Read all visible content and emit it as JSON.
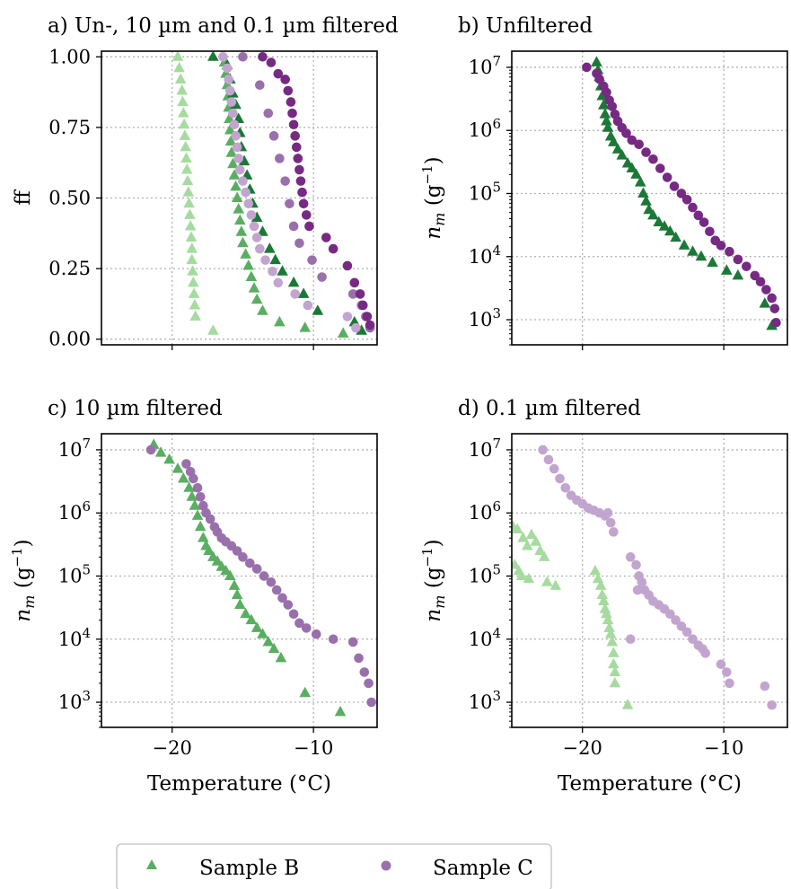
{
  "colors": {
    "B_unfilt": "#1b7837",
    "B_10um": "#5aae61",
    "B_01um": "#a6dba0",
    "C_unfilt": "#762a83",
    "C_10um": "#9970ab",
    "C_01um": "#c2a5cf"
  },
  "legend": {
    "entries": [
      "Sample B",
      "Sample C"
    ]
  },
  "xaxis": {
    "label": "Temperature (°C)",
    "ticks": [
      -20,
      -10
    ],
    "tick_labels": [
      "−20",
      "−10"
    ],
    "range": [
      -25,
      -5.5
    ]
  },
  "chart_data": [
    {
      "panel": "a",
      "type": "scatter",
      "title": "a) Un-, 10 µm and 0.1 µm filtered",
      "ylabel": "ff",
      "xlim": [
        -25,
        -5.5
      ],
      "ylim": [
        -0.02,
        1.02
      ],
      "yscale": "linear",
      "yticks": [
        0.0,
        0.25,
        0.5,
        0.75,
        1.0
      ],
      "ytick_labels": [
        "0.00",
        "0.25",
        "0.50",
        "0.75",
        "1.00"
      ],
      "grid": true,
      "series": [
        {
          "sample": "B",
          "filter": "0.1 µm",
          "marker": "triangle",
          "color_key": "B_01um",
          "x": [
            -19.6,
            -19.5,
            -19.4,
            -19.3,
            -19.25,
            -19.2,
            -19.15,
            -19.1,
            -19.05,
            -19.0,
            -18.95,
            -18.9,
            -18.85,
            -18.8,
            -18.75,
            -18.7,
            -18.65,
            -18.6,
            -18.6,
            -18.55,
            -18.5,
            -18.45,
            -18.4,
            -18.35,
            -17.1
          ],
          "y": [
            1.0,
            0.96,
            0.92,
            0.88,
            0.84,
            0.8,
            0.76,
            0.72,
            0.68,
            0.64,
            0.6,
            0.56,
            0.52,
            0.48,
            0.44,
            0.4,
            0.36,
            0.32,
            0.28,
            0.24,
            0.2,
            0.16,
            0.12,
            0.08,
            0.03
          ]
        },
        {
          "sample": "B",
          "filter": "10 µm",
          "marker": "triangle",
          "color_key": "B_10um",
          "x": [
            -16.3,
            -16.2,
            -16.1,
            -16.05,
            -16.0,
            -15.95,
            -15.9,
            -15.85,
            -15.8,
            -15.7,
            -15.6,
            -15.5,
            -15.4,
            -15.3,
            -15.2,
            -15.1,
            -15.0,
            -14.8,
            -14.6,
            -14.4,
            -14.2,
            -14.0,
            -13.6,
            -12.4,
            -10.6,
            -7.9
          ],
          "y": [
            0.98,
            0.94,
            0.9,
            0.86,
            0.82,
            0.78,
            0.74,
            0.7,
            0.66,
            0.62,
            0.58,
            0.54,
            0.5,
            0.46,
            0.42,
            0.38,
            0.34,
            0.3,
            0.26,
            0.22,
            0.18,
            0.14,
            0.1,
            0.06,
            0.04,
            0.02
          ]
        },
        {
          "sample": "B",
          "filter": "Unfiltered",
          "marker": "triangle",
          "color_key": "B_unfilt",
          "x": [
            -17.1,
            -16.1,
            -15.9,
            -15.7,
            -15.5,
            -15.3,
            -15.2,
            -15.1,
            -14.9,
            -14.7,
            -14.5,
            -14.3,
            -14.0,
            -13.6,
            -13.1,
            -12.7,
            -12.2,
            -11.4,
            -10.7,
            -9.7,
            -7.1,
            -6.6
          ],
          "y": [
            1.0,
            0.97,
            0.92,
            0.87,
            0.83,
            0.78,
            0.73,
            0.68,
            0.63,
            0.58,
            0.53,
            0.48,
            0.43,
            0.38,
            0.32,
            0.28,
            0.24,
            0.2,
            0.16,
            0.1,
            0.06,
            0.03
          ]
        },
        {
          "sample": "C",
          "filter": "0.1 µm",
          "marker": "circle",
          "color_key": "C_01um",
          "x": [
            -16.4,
            -16.1,
            -16.0,
            -15.9,
            -15.8,
            -15.7,
            -15.6,
            -15.5,
            -15.4,
            -15.3,
            -15.2,
            -15.0,
            -14.8,
            -14.6,
            -14.4,
            -14.2,
            -14.0,
            -13.8,
            -13.4,
            -12.9,
            -12.5,
            -11.3,
            -10.4,
            -7.6,
            -7.0
          ],
          "y": [
            1.0,
            0.96,
            0.92,
            0.88,
            0.84,
            0.8,
            0.76,
            0.72,
            0.68,
            0.64,
            0.6,
            0.56,
            0.52,
            0.48,
            0.44,
            0.4,
            0.36,
            0.32,
            0.28,
            0.24,
            0.2,
            0.16,
            0.12,
            0.08,
            0.04
          ]
        },
        {
          "sample": "C",
          "filter": "10 µm",
          "marker": "circle",
          "color_key": "C_10um",
          "x": [
            -15.0,
            -13.8,
            -13.2,
            -12.8,
            -12.4,
            -12.0,
            -11.7,
            -11.4,
            -11.0,
            -10.1,
            -9.4,
            -7.2,
            -6.6,
            -6.3,
            -6.0
          ],
          "y": [
            1.0,
            0.9,
            0.8,
            0.72,
            0.64,
            0.56,
            0.48,
            0.4,
            0.34,
            0.28,
            0.22,
            0.16,
            0.12,
            0.08,
            0.04
          ]
        },
        {
          "sample": "C",
          "filter": "Unfiltered",
          "marker": "circle",
          "color_key": "C_unfilt",
          "x": [
            -13.6,
            -13.0,
            -12.5,
            -12.0,
            -11.8,
            -11.6,
            -11.5,
            -11.4,
            -11.3,
            -11.2,
            -11.1,
            -11.0,
            -10.9,
            -10.8,
            -10.7,
            -10.5,
            -10.3,
            -9.1,
            -8.6,
            -7.6,
            -7.1,
            -6.7,
            -6.5,
            -6.2,
            -6.0
          ],
          "y": [
            1.0,
            0.98,
            0.94,
            0.92,
            0.88,
            0.84,
            0.8,
            0.76,
            0.72,
            0.68,
            0.64,
            0.6,
            0.56,
            0.52,
            0.48,
            0.44,
            0.4,
            0.36,
            0.32,
            0.26,
            0.2,
            0.16,
            0.12,
            0.08,
            0.05
          ]
        }
      ]
    },
    {
      "panel": "b",
      "type": "scatter",
      "title": "b) Unfiltered",
      "ylabel": "n_m (g−1)",
      "xlim": [
        -25,
        -5.5
      ],
      "ylim": [
        400,
        18000000
      ],
      "yscale": "log",
      "grid": true,
      "series": [
        {
          "sample": "B",
          "filter": "Unfiltered",
          "marker": "triangle",
          "color_key": "B_unfilt",
          "x": [
            -19.0,
            -18.9,
            -18.8,
            -18.7,
            -18.6,
            -18.5,
            -18.4,
            -18.3,
            -18.2,
            -18.0,
            -17.8,
            -17.5,
            -17.2,
            -16.8,
            -16.5,
            -16.2,
            -15.9,
            -15.7,
            -15.5,
            -15.3,
            -15.0,
            -14.6,
            -14.2,
            -13.8,
            -13.4,
            -12.8,
            -12.2,
            -11.6,
            -10.8,
            -9.8,
            -9.0,
            -7.1,
            -6.6
          ],
          "y": [
            12000000,
            9000000,
            7000000,
            5000000,
            3500000,
            2500000,
            1800000,
            1400000,
            1100000,
            800000,
            650000,
            500000,
            400000,
            300000,
            250000,
            200000,
            150000,
            100000,
            75000,
            55000,
            45000,
            35000,
            30000,
            25000,
            20000,
            15000,
            12000,
            10000,
            8000,
            6000,
            5000,
            1800,
            800
          ]
        },
        {
          "sample": "C",
          "filter": "Unfiltered",
          "marker": "circle",
          "color_key": "C_unfilt",
          "x": [
            -19.7,
            -19.0,
            -18.8,
            -18.5,
            -18.3,
            -18.1,
            -17.9,
            -17.7,
            -17.5,
            -17.2,
            -16.9,
            -16.5,
            -16.0,
            -15.5,
            -15.0,
            -14.5,
            -14.0,
            -13.5,
            -13.0,
            -12.6,
            -12.2,
            -11.8,
            -11.4,
            -11.0,
            -10.6,
            -10.2,
            -9.6,
            -9.0,
            -8.4,
            -7.8,
            -7.4,
            -7.0,
            -6.6,
            -6.4,
            -6.3
          ],
          "y": [
            10000000,
            8000000,
            6500000,
            5000000,
            4000000,
            3000000,
            2400000,
            1800000,
            1400000,
            1100000,
            900000,
            700000,
            600000,
            450000,
            350000,
            250000,
            180000,
            130000,
            100000,
            80000,
            60000,
            45000,
            35000,
            25000,
            18000,
            15000,
            12000,
            9000,
            7000,
            5000,
            4000,
            3000,
            2200,
            1500,
            900
          ]
        }
      ]
    },
    {
      "panel": "c",
      "type": "scatter",
      "title": "c) 10 µm filtered",
      "ylabel": "n_m (g−1)",
      "xlim": [
        -25,
        -5.5
      ],
      "ylim": [
        400,
        18000000
      ],
      "yscale": "log",
      "xlabel": "Temperature (°C)",
      "grid": true,
      "series": [
        {
          "sample": "B",
          "filter": "10 µm",
          "marker": "triangle",
          "color_key": "B_10um",
          "x": [
            -21.3,
            -20.8,
            -20.2,
            -19.6,
            -19.2,
            -18.8,
            -18.6,
            -18.4,
            -18.2,
            -18.0,
            -17.8,
            -17.6,
            -17.4,
            -17.1,
            -16.8,
            -16.5,
            -16.2,
            -15.9,
            -15.6,
            -15.4,
            -15.2,
            -14.8,
            -14.4,
            -14.0,
            -13.6,
            -13.2,
            -12.8,
            -12.3,
            -10.6,
            -8.1
          ],
          "y": [
            12000000,
            9000000,
            7000000,
            5000000,
            3500000,
            2500000,
            1800000,
            1300000,
            900000,
            600000,
            400000,
            300000,
            250000,
            200000,
            170000,
            140000,
            120000,
            100000,
            70000,
            50000,
            35000,
            25000,
            20000,
            15000,
            12000,
            9000,
            7000,
            5000,
            1400,
            700
          ]
        },
        {
          "sample": "C",
          "filter": "10 µm",
          "marker": "circle",
          "color_key": "C_10um",
          "x": [
            -21.5,
            -19.0,
            -18.7,
            -18.5,
            -18.2,
            -18.0,
            -17.8,
            -17.6,
            -17.3,
            -17.0,
            -16.8,
            -16.5,
            -16.2,
            -15.8,
            -15.4,
            -15.0,
            -14.5,
            -14.0,
            -13.5,
            -13.0,
            -12.6,
            -12.2,
            -11.8,
            -11.4,
            -11.0,
            -10.5,
            -9.8,
            -8.6,
            -7.2,
            -6.8,
            -6.4,
            -6.1,
            -5.9
          ],
          "y": [
            10000000,
            6000000,
            4500000,
            3500000,
            2500000,
            1800000,
            1300000,
            1000000,
            800000,
            600000,
            500000,
            400000,
            350000,
            300000,
            250000,
            200000,
            160000,
            130000,
            100000,
            80000,
            60000,
            45000,
            35000,
            25000,
            18000,
            15000,
            12000,
            10000,
            9000,
            5000,
            3000,
            2000,
            1000
          ]
        }
      ]
    },
    {
      "panel": "d",
      "type": "scatter",
      "title": "d) 0.1 µm filtered",
      "ylabel": "n_m (g−1)",
      "xlim": [
        -25,
        -5.5
      ],
      "ylim": [
        400,
        18000000
      ],
      "yscale": "log",
      "xlabel": "Temperature (°C)",
      "grid": true,
      "series": [
        {
          "sample": "B",
          "filter": "0.1 µm",
          "marker": "triangle",
          "color_key": "B_01um",
          "x": [
            -24.9,
            -24.6,
            -24.2,
            -23.9,
            -23.6,
            -23.3,
            -23.0,
            -22.7,
            -24.8,
            -24.5,
            -24.3,
            -23.8,
            -22.5,
            -21.9,
            -19.1,
            -18.9,
            -18.7,
            -18.6,
            -18.5,
            -18.4,
            -18.3,
            -18.2,
            -18.1,
            -18.0,
            -17.9,
            -17.8,
            -17.8,
            -17.7,
            -17.7,
            -16.8
          ],
          "y": [
            600000,
            550000,
            400000,
            300000,
            450000,
            350000,
            250000,
            200000,
            150000,
            120000,
            100000,
            90000,
            80000,
            70000,
            120000,
            90000,
            70000,
            50000,
            40000,
            30000,
            25000,
            20000,
            15000,
            12000,
            9000,
            6000,
            4000,
            3000,
            2000,
            900
          ]
        },
        {
          "sample": "C",
          "filter": "0.1 µm",
          "marker": "circle",
          "color_key": "C_01um",
          "x": [
            -22.8,
            -22.4,
            -22.0,
            -21.6,
            -21.2,
            -20.8,
            -20.4,
            -20.0,
            -19.6,
            -19.2,
            -18.8,
            -18.4,
            -18.2,
            -18.0,
            -17.8,
            -16.6,
            -16.2,
            -16.0,
            -15.8,
            -15.6,
            -15.3,
            -15.0,
            -14.6,
            -14.2,
            -13.8,
            -13.4,
            -13.0,
            -12.6,
            -12.2,
            -11.8,
            -11.5,
            -11.3,
            -10.2,
            -9.8,
            -9.6,
            -7.1,
            -6.6,
            -16.1,
            -16.6
          ],
          "y": [
            10000000,
            7000000,
            5000000,
            3500000,
            2500000,
            1900000,
            1600000,
            1400000,
            1200000,
            1100000,
            1000000,
            900000,
            1000000,
            700000,
            500000,
            200000,
            150000,
            100000,
            80000,
            60000,
            50000,
            40000,
            35000,
            30000,
            25000,
            20000,
            16000,
            13000,
            10000,
            8000,
            7000,
            6000,
            4000,
            3000,
            2000,
            1800,
            900,
            60000,
            10000
          ]
        }
      ]
    }
  ]
}
